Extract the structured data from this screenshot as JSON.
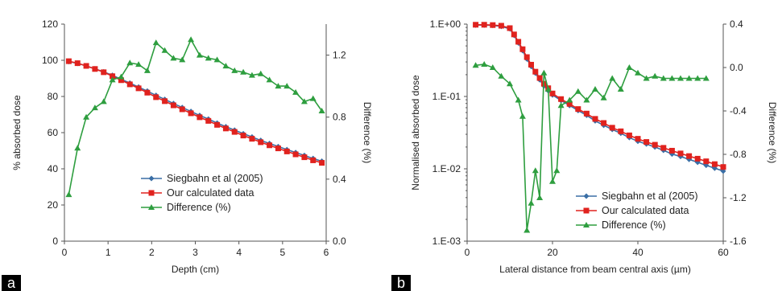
{
  "panel_labels": [
    "a",
    "b"
  ],
  "chart_data": [
    {
      "type": "line",
      "xlabel": "Depth (cm)",
      "ylabel": "% absorbed dose",
      "y2label": "Difference (%)",
      "xlim": [
        0,
        6
      ],
      "ylim": [
        0,
        120
      ],
      "y2lim": [
        0,
        1.4
      ],
      "xticks": [
        "0",
        "1",
        "2",
        "3",
        "4",
        "5",
        "6"
      ],
      "yticks": [
        "0",
        "20",
        "40",
        "60",
        "80",
        "100",
        "120"
      ],
      "y2ticks": [
        "0.0",
        "0.4",
        "0.8",
        "1.2"
      ],
      "legend_position": "bottom-center",
      "series": [
        {
          "name": "Siegbahn et al (2005)",
          "axis": "left",
          "color": "#3a6ea5",
          "marker": "diamond",
          "x": [
            0.1,
            0.3,
            0.5,
            0.7,
            0.9,
            1.1,
            1.3,
            1.5,
            1.7,
            1.9,
            2.1,
            2.3,
            2.5,
            2.7,
            2.9,
            3.1,
            3.3,
            3.5,
            3.7,
            3.9,
            4.1,
            4.3,
            4.5,
            4.7,
            4.9,
            5.1,
            5.3,
            5.5,
            5.7,
            5.9
          ],
          "values": [
            99.3,
            98.3,
            96.9,
            95.3,
            93.6,
            91.7,
            89.5,
            87.4,
            85.2,
            83.0,
            80.6,
            78.4,
            76.1,
            73.9,
            71.7,
            69.5,
            67.5,
            65.3,
            63.3,
            61.4,
            59.4,
            57.6,
            55.7,
            54.0,
            52.3,
            50.6,
            49.0,
            47.4,
            45.7,
            44.2
          ]
        },
        {
          "name": "Our calculated data",
          "axis": "left",
          "color": "#e0221e",
          "marker": "square",
          "x": [
            0.1,
            0.3,
            0.5,
            0.7,
            0.9,
            1.1,
            1.3,
            1.5,
            1.7,
            1.9,
            2.1,
            2.3,
            2.5,
            2.7,
            2.9,
            3.1,
            3.3,
            3.5,
            3.7,
            3.9,
            4.1,
            4.3,
            4.5,
            4.7,
            4.9,
            5.1,
            5.3,
            5.5,
            5.7,
            5.9
          ],
          "values": [
            99.5,
            98.4,
            96.9,
            95.2,
            93.4,
            91.2,
            89.0,
            86.7,
            84.5,
            82.1,
            79.6,
            77.4,
            75.1,
            72.9,
            70.7,
            68.5,
            66.5,
            64.3,
            62.3,
            60.4,
            58.4,
            56.6,
            54.7,
            53.0,
            51.3,
            49.6,
            48.0,
            46.4,
            44.7,
            43.3
          ]
        },
        {
          "name": "Difference (%)",
          "axis": "right",
          "color": "#2e9e3f",
          "marker": "triangle",
          "x": [
            0.1,
            0.3,
            0.5,
            0.7,
            0.9,
            1.1,
            1.3,
            1.5,
            1.7,
            1.9,
            2.1,
            2.3,
            2.5,
            2.7,
            2.9,
            3.1,
            3.3,
            3.5,
            3.7,
            3.9,
            4.1,
            4.3,
            4.5,
            4.7,
            4.9,
            5.1,
            5.3,
            5.5,
            5.7,
            5.9
          ],
          "values": [
            0.3,
            0.6,
            0.8,
            0.86,
            0.9,
            1.04,
            1.06,
            1.15,
            1.14,
            1.1,
            1.28,
            1.23,
            1.18,
            1.17,
            1.3,
            1.2,
            1.18,
            1.17,
            1.13,
            1.1,
            1.09,
            1.07,
            1.08,
            1.04,
            1.0,
            1.0,
            0.96,
            0.9,
            0.92,
            0.84
          ]
        }
      ]
    },
    {
      "type": "line",
      "xlabel": "Lateral distance from beam central axis (µm)",
      "ylabel": "Normalised absorbed dose",
      "y2label": "Difference (%)",
      "yscale": "log",
      "xlim": [
        0,
        60
      ],
      "ylim": [
        0.001,
        1
      ],
      "y2lim": [
        -1.6,
        0.4
      ],
      "xticks": [
        "0",
        "20",
        "40",
        "60"
      ],
      "yticks": [
        "1.E-03",
        "1.E-02",
        "1.E-01",
        "1.E+00"
      ],
      "y2ticks": [
        "-1.6",
        "-1.2",
        "-0.8",
        "-0.4",
        "0.0",
        "0.4"
      ],
      "legend_position": "bottom-right",
      "series": [
        {
          "name": "Siegbahn et al (2005)",
          "axis": "left",
          "color": "#3a6ea5",
          "marker": "diamond",
          "x": [
            2,
            4,
            6,
            8,
            10,
            11,
            12,
            13,
            14,
            15,
            16,
            17,
            18,
            19,
            20,
            22,
            24,
            26,
            28,
            30,
            32,
            34,
            36,
            38,
            40,
            42,
            44,
            46,
            48,
            50,
            52,
            54,
            56,
            58,
            60
          ],
          "values": [
            0.97,
            0.97,
            0.96,
            0.93,
            0.86,
            0.7,
            0.55,
            0.43,
            0.33,
            0.26,
            0.21,
            0.17,
            0.14,
            0.12,
            0.105,
            0.088,
            0.075,
            0.064,
            0.055,
            0.046,
            0.04,
            0.035,
            0.031,
            0.027,
            0.024,
            0.022,
            0.02,
            0.018,
            0.016,
            0.0148,
            0.0135,
            0.0123,
            0.0112,
            0.0102,
            0.0093
          ]
        },
        {
          "name": "Our calculated data",
          "axis": "left",
          "color": "#e0221e",
          "marker": "square",
          "x": [
            2,
            4,
            6,
            8,
            10,
            11,
            12,
            13,
            14,
            15,
            16,
            17,
            18,
            19,
            20,
            22,
            24,
            26,
            28,
            30,
            32,
            34,
            36,
            38,
            40,
            42,
            44,
            46,
            48,
            50,
            52,
            54,
            56,
            58,
            60
          ],
          "values": [
            0.98,
            0.98,
            0.97,
            0.95,
            0.88,
            0.72,
            0.57,
            0.45,
            0.35,
            0.275,
            0.22,
            0.18,
            0.15,
            0.13,
            0.11,
            0.092,
            0.079,
            0.067,
            0.058,
            0.049,
            0.043,
            0.037,
            0.033,
            0.029,
            0.026,
            0.0235,
            0.0215,
            0.0195,
            0.0178,
            0.0163,
            0.015,
            0.0138,
            0.0127,
            0.0116,
            0.0106
          ]
        },
        {
          "name": "Difference (%)",
          "axis": "right",
          "color": "#2e9e3f",
          "marker": "triangle",
          "x": [
            2,
            4,
            6,
            8,
            10,
            12,
            13,
            14,
            15,
            16,
            17,
            18,
            19,
            20,
            21,
            22,
            24,
            26,
            28,
            30,
            32,
            34,
            36,
            38,
            40,
            42,
            44,
            46,
            48,
            50,
            52,
            54,
            56
          ],
          "values": [
            0.02,
            0.03,
            0.0,
            -0.08,
            -0.15,
            -0.3,
            -0.45,
            -1.5,
            -1.25,
            -0.95,
            -1.2,
            -0.05,
            -0.2,
            -1.05,
            -0.95,
            -0.35,
            -0.3,
            -0.22,
            -0.3,
            -0.2,
            -0.28,
            -0.1,
            -0.2,
            0.0,
            -0.05,
            -0.1,
            -0.08,
            -0.1,
            -0.1,
            -0.1,
            -0.1,
            -0.1,
            -0.1
          ]
        }
      ]
    }
  ]
}
